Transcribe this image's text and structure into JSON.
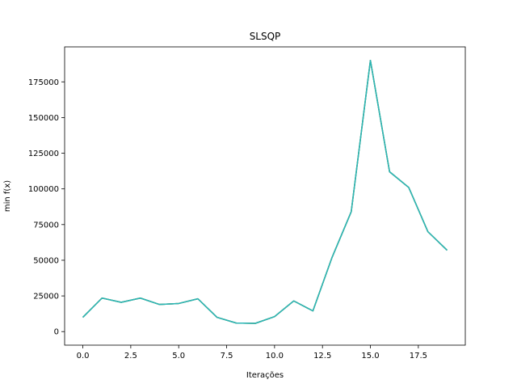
{
  "chart_data": {
    "type": "line",
    "title": "SLSQP",
    "xlabel": "Iterações",
    "ylabel": "min f(x)",
    "xlim": [
      -0.95,
      19.95
    ],
    "ylim": [
      -9500,
      199500
    ],
    "xticks": [
      0.0,
      2.5,
      5.0,
      7.5,
      10.0,
      12.5,
      15.0,
      17.5
    ],
    "xtick_labels": [
      "0.0",
      "2.5",
      "5.0",
      "7.5",
      "10.0",
      "12.5",
      "15.0",
      "17.5"
    ],
    "yticks": [
      0,
      25000,
      50000,
      75000,
      100000,
      125000,
      150000,
      175000
    ],
    "ytick_labels": [
      "0",
      "25000",
      "50000",
      "75000",
      "100000",
      "125000",
      "150000",
      "175000"
    ],
    "grid": false,
    "x": [
      0,
      1,
      2,
      3,
      4,
      5,
      6,
      7,
      8,
      9,
      10,
      11,
      12,
      13,
      14,
      15,
      16,
      17,
      18,
      19
    ],
    "series": [
      {
        "values": [
          10000,
          23500,
          20500,
          23500,
          19000,
          19700,
          23000,
          10000,
          6000,
          5800,
          10500,
          21500,
          14500,
          52000,
          84000,
          190000,
          112000,
          101000,
          70000,
          57000
        ],
        "color": "#17becf"
      },
      {
        "values": [
          10000,
          23500,
          20500,
          23500,
          19000,
          19700,
          23000,
          10000,
          6000,
          5800,
          10500,
          21500,
          14500,
          52000,
          84000,
          190000,
          112000,
          101000,
          70000,
          57000
        ],
        "color": "#bcbd22"
      },
      {
        "values": [
          10000,
          23500,
          20500,
          23500,
          19000,
          19700,
          23000,
          10000,
          6000,
          5800,
          10500,
          21500,
          14500,
          52000,
          84000,
          190000,
          112000,
          101000,
          70000,
          57000
        ],
        "color": "#7f7f7f"
      },
      {
        "values": [
          10000,
          23500,
          20500,
          23500,
          19000,
          19700,
          23000,
          10000,
          6000,
          5800,
          10500,
          21500,
          14500,
          52000,
          84000,
          190000,
          112000,
          101000,
          70000,
          57000
        ],
        "color": "#2ab7b7"
      }
    ]
  }
}
